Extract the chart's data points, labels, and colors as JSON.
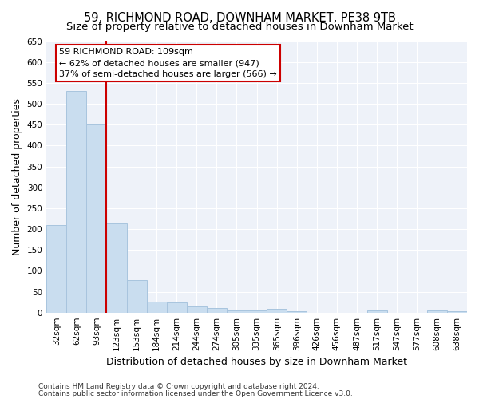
{
  "title1": "59, RICHMOND ROAD, DOWNHAM MARKET, PE38 9TB",
  "title2": "Size of property relative to detached houses in Downham Market",
  "xlabel": "Distribution of detached houses by size in Downham Market",
  "ylabel": "Number of detached properties",
  "footnote1": "Contains HM Land Registry data © Crown copyright and database right 2024.",
  "footnote2": "Contains public sector information licensed under the Open Government Licence v3.0.",
  "categories": [
    "32sqm",
    "62sqm",
    "93sqm",
    "123sqm",
    "153sqm",
    "184sqm",
    "214sqm",
    "244sqm",
    "274sqm",
    "305sqm",
    "335sqm",
    "365sqm",
    "396sqm",
    "426sqm",
    "456sqm",
    "487sqm",
    "517sqm",
    "547sqm",
    "577sqm",
    "608sqm",
    "638sqm"
  ],
  "values": [
    210,
    530,
    450,
    213,
    78,
    27,
    25,
    15,
    10,
    5,
    6,
    9,
    3,
    0,
    0,
    0,
    5,
    0,
    0,
    5,
    3
  ],
  "bar_color": "#c9ddef",
  "bar_edge_color": "#a8c4de",
  "vline_x_index": 2,
  "vline_color": "#cc0000",
  "annotation_line1": "59 RICHMOND ROAD: 109sqm",
  "annotation_line2": "← 62% of detached houses are smaller (947)",
  "annotation_line3": "37% of semi-detached houses are larger (566) →",
  "annotation_box_color": "#cc0000",
  "ylim": [
    0,
    650
  ],
  "yticks": [
    0,
    50,
    100,
    150,
    200,
    250,
    300,
    350,
    400,
    450,
    500,
    550,
    600,
    650
  ],
  "bg_color": "#eef2f9",
  "grid_color": "#ffffff",
  "fig_bg_color": "#ffffff",
  "title1_fontsize": 10.5,
  "title2_fontsize": 9.5,
  "axis_label_fontsize": 9,
  "tick_fontsize": 7.5,
  "annotation_fontsize": 8,
  "footnote_fontsize": 6.5
}
